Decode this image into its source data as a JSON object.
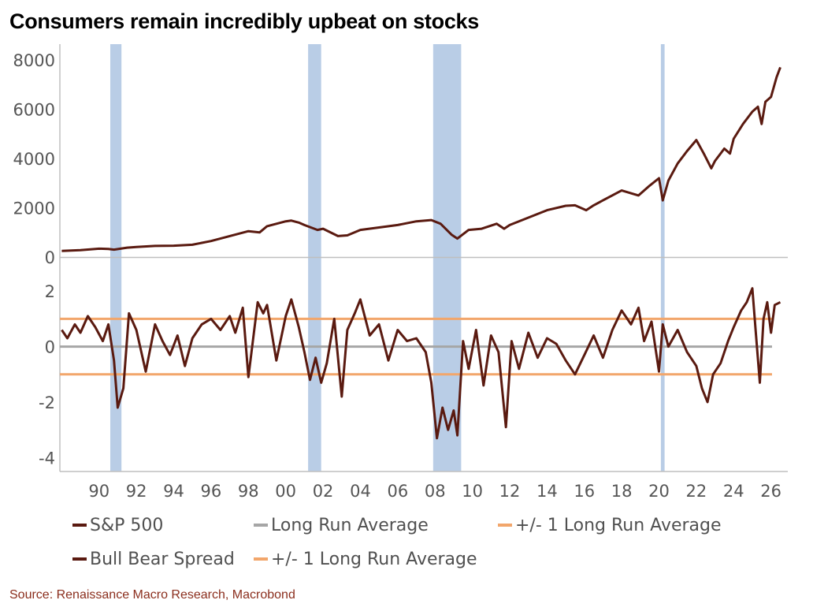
{
  "title": "Consumers remain incredibly upbeat on stocks",
  "source": "Source: Renaissance Macro Research, Macrobond",
  "colors": {
    "series": "#5a1a10",
    "average": "#a6a6a6",
    "band": "#f2a66b",
    "recession": "#b9cde6",
    "axis": "#bfbfbf"
  },
  "legend": [
    {
      "label": "S&P 500",
      "color": "#5a1a10"
    },
    {
      "label": "Long Run Average",
      "color": "#a6a6a6"
    },
    {
      "label": "+/- 1 Long Run Average",
      "color": "#f2a66b"
    },
    {
      "label": "Bull Bear Spread",
      "color": "#5a1a10"
    },
    {
      "label": "+/- 1 Long Run Average",
      "color": "#f2a66b"
    }
  ],
  "chart_data": [
    {
      "type": "line",
      "title": "",
      "xlim": [
        1987.9,
        2026.9
      ],
      "ylim": [
        0,
        8000
      ],
      "yticks": [
        0,
        2000,
        4000,
        6000,
        8000
      ],
      "grid": false,
      "legend_position": "bottom",
      "recessions": [
        [
          1990.6,
          1991.2
        ],
        [
          2001.2,
          2001.9
        ],
        [
          2007.9,
          2009.4
        ],
        [
          2020.1,
          2020.3
        ]
      ],
      "series": [
        {
          "name": "S&P 500",
          "x": [
            1988.0,
            1989.0,
            1990.0,
            1990.5,
            1990.8,
            1991.5,
            1992.0,
            1993.0,
            1994.0,
            1995.0,
            1996.0,
            1997.0,
            1998.0,
            1998.6,
            1999.0,
            2000.0,
            2000.3,
            2000.7,
            2001.0,
            2001.7,
            2002.0,
            2002.8,
            2003.3,
            2004.0,
            2005.0,
            2006.0,
            2007.0,
            2007.8,
            2008.3,
            2008.9,
            2009.2,
            2009.8,
            2010.5,
            2011.3,
            2011.7,
            2012.0,
            2013.0,
            2014.0,
            2015.0,
            2015.5,
            2016.1,
            2016.5,
            2017.0,
            2018.0,
            2018.9,
            2019.5,
            2020.0,
            2020.2,
            2020.5,
            2021.0,
            2021.5,
            2022.0,
            2022.4,
            2022.8,
            2023.0,
            2023.5,
            2023.8,
            2024.0,
            2024.5,
            2025.0,
            2025.3,
            2025.5,
            2025.7,
            2026.0,
            2026.3,
            2026.5
          ],
          "values": [
            250,
            280,
            340,
            330,
            300,
            380,
            410,
            450,
            460,
            500,
            650,
            850,
            1050,
            1000,
            1250,
            1450,
            1480,
            1400,
            1300,
            1100,
            1150,
            850,
            880,
            1100,
            1200,
            1300,
            1450,
            1500,
            1350,
            900,
            750,
            1100,
            1150,
            1350,
            1150,
            1300,
            1600,
            1900,
            2080,
            2100,
            1900,
            2100,
            2300,
            2700,
            2500,
            2900,
            3200,
            2300,
            3100,
            3800,
            4300,
            4750,
            4200,
            3600,
            3900,
            4400,
            4200,
            4800,
            5400,
            5900,
            6100,
            5400,
            6300,
            6500,
            7300,
            7700
          ]
        }
      ]
    },
    {
      "type": "line",
      "title": "",
      "xlim": [
        1987.9,
        2026.9
      ],
      "ylim": [
        -4.5,
        3
      ],
      "yticks": [
        -4,
        -2,
        0,
        2
      ],
      "xticks": [
        "90",
        "92",
        "94",
        "96",
        "98",
        "00",
        "02",
        "04",
        "06",
        "08",
        "10",
        "12",
        "14",
        "16",
        "18",
        "20",
        "22",
        "24",
        "26"
      ],
      "grid": false,
      "legend_position": "bottom",
      "reference_lines": [
        {
          "name": "Long Run Average",
          "value": 0
        },
        {
          "name": "+/- 1 Long Run Average",
          "value": 1
        },
        {
          "name": "+/- 1 Long Run Average",
          "value": -1
        }
      ],
      "recessions": [
        [
          1990.6,
          1991.2
        ],
        [
          2001.2,
          2001.9
        ],
        [
          2007.9,
          2009.4
        ],
        [
          2020.1,
          2020.3
        ]
      ],
      "series": [
        {
          "name": "Bull Bear Spread",
          "x": [
            1988.0,
            1988.3,
            1988.7,
            1989.0,
            1989.4,
            1989.8,
            1990.2,
            1990.5,
            1990.8,
            1991.0,
            1991.3,
            1991.6,
            1992.0,
            1992.5,
            1993.0,
            1993.4,
            1993.8,
            1994.2,
            1994.6,
            1995.0,
            1995.5,
            1996.0,
            1996.5,
            1997.0,
            1997.3,
            1997.7,
            1998.0,
            1998.5,
            1998.8,
            1999.0,
            1999.5,
            2000.0,
            2000.3,
            2000.7,
            2001.0,
            2001.3,
            2001.6,
            2001.9,
            2002.2,
            2002.6,
            2003.0,
            2003.3,
            2003.7,
            2004.0,
            2004.5,
            2005.0,
            2005.5,
            2006.0,
            2006.5,
            2007.0,
            2007.5,
            2007.8,
            2008.1,
            2008.4,
            2008.7,
            2009.0,
            2009.2,
            2009.5,
            2009.8,
            2010.2,
            2010.6,
            2011.0,
            2011.4,
            2011.8,
            2012.1,
            2012.5,
            2013.0,
            2013.5,
            2014.0,
            2014.5,
            2015.0,
            2015.5,
            2016.0,
            2016.5,
            2017.0,
            2017.5,
            2018.0,
            2018.5,
            2018.9,
            2019.2,
            2019.6,
            2020.0,
            2020.2,
            2020.5,
            2021.0,
            2021.5,
            2022.0,
            2022.3,
            2022.6,
            2022.9,
            2023.3,
            2023.7,
            2024.0,
            2024.4,
            2024.7,
            2025.0,
            2025.2,
            2025.4,
            2025.6,
            2025.8,
            2026.0,
            2026.2,
            2026.5
          ],
          "values": [
            0.6,
            0.3,
            0.8,
            0.5,
            1.1,
            0.7,
            0.2,
            0.8,
            -0.5,
            -2.2,
            -1.5,
            1.2,
            0.6,
            -0.9,
            0.8,
            0.2,
            -0.3,
            0.4,
            -0.7,
            0.3,
            0.8,
            1.0,
            0.6,
            1.1,
            0.5,
            1.4,
            -1.1,
            1.6,
            1.2,
            1.5,
            -0.5,
            1.1,
            1.7,
            0.7,
            -0.2,
            -1.2,
            -0.4,
            -1.3,
            -0.6,
            1.0,
            -1.8,
            0.6,
            1.2,
            1.7,
            0.4,
            0.8,
            -0.5,
            0.6,
            0.2,
            0.3,
            -0.2,
            -1.3,
            -3.3,
            -2.2,
            -3.0,
            -2.3,
            -3.2,
            0.2,
            -0.8,
            0.6,
            -1.4,
            0.4,
            -0.2,
            -2.9,
            0.2,
            -0.8,
            0.5,
            -0.4,
            0.3,
            0.1,
            -0.5,
            -1.0,
            -0.3,
            0.4,
            -0.4,
            0.6,
            1.3,
            0.8,
            1.4,
            0.2,
            0.9,
            -0.9,
            0.8,
            0.0,
            0.6,
            -0.2,
            -0.7,
            -1.5,
            -2.0,
            -1.0,
            -0.6,
            0.2,
            0.7,
            1.3,
            1.6,
            2.1,
            0.4,
            -1.3,
            1.0,
            1.6,
            0.5,
            1.5,
            1.6
          ]
        }
      ]
    }
  ]
}
